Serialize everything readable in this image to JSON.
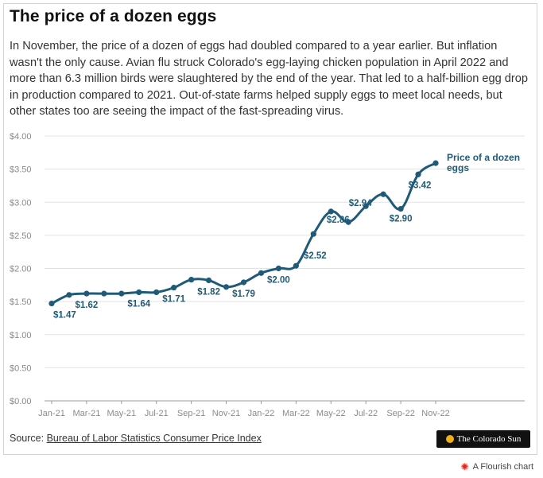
{
  "header": {
    "title": "The price of a dozen eggs",
    "description": "In November, the price of a dozen of eggs had doubled compared to a year earlier. But inflation wasn't the only cause. Avian flu struck Colorado's egg-laying chicken population in April 2022 and more than 6.3 million birds were slaughtered by the end of the year. That led to a half-billion egg drop in production compared to 2021. Out-of-state farms helped supply eggs to meet local needs, but other states too are seeing the impact of the fast-spreading virus."
  },
  "footer": {
    "source_prefix": "Source: ",
    "source_link": "Bureau of Labor Statistics Consumer Price Index",
    "logo_text": "The Colorado Sun",
    "flourish_text": "A Flourish chart"
  },
  "chart_data": {
    "type": "line",
    "title": "",
    "xlabel": "",
    "ylabel": "",
    "ylim": [
      0,
      4
    ],
    "y_ticks": [
      "$0.00",
      "$0.50",
      "$1.00",
      "$1.50",
      "$2.00",
      "$2.50",
      "$3.00",
      "$3.50",
      "$4.00"
    ],
    "x_ticks": [
      "Jan-21",
      "Mar-21",
      "May-21",
      "Jul-21",
      "Sep-21",
      "Nov-21",
      "Jan-22",
      "Mar-22",
      "May-22",
      "Jul-22",
      "Sep-22",
      "Nov-22"
    ],
    "grid": true,
    "categories": [
      "Jan-21",
      "Feb-21",
      "Mar-21",
      "Apr-21",
      "May-21",
      "Jun-21",
      "Jul-21",
      "Aug-21",
      "Sep-21",
      "Oct-21",
      "Nov-21",
      "Dec-21",
      "Jan-22",
      "Feb-22",
      "Mar-22",
      "Apr-22",
      "May-22",
      "Jun-22",
      "Jul-22",
      "Aug-22",
      "Sep-22",
      "Oct-22",
      "Nov-22"
    ],
    "series": [
      {
        "name": "Price of a dozen eggs",
        "color": "#1f5a78",
        "values": [
          1.47,
          1.6,
          1.62,
          1.62,
          1.62,
          1.64,
          1.64,
          1.71,
          1.83,
          1.82,
          1.72,
          1.79,
          1.93,
          2.0,
          2.04,
          2.52,
          2.86,
          2.7,
          2.94,
          3.12,
          2.9,
          3.42,
          3.59
        ]
      }
    ],
    "data_labels": [
      {
        "index": 0,
        "text": "$1.47"
      },
      {
        "index": 2,
        "text": "$1.62"
      },
      {
        "index": 5,
        "text": "$1.64"
      },
      {
        "index": 7,
        "text": "$1.71"
      },
      {
        "index": 9,
        "text": "$1.82"
      },
      {
        "index": 11,
        "text": "$1.79"
      },
      {
        "index": 13,
        "text": "$2.00"
      },
      {
        "index": 15,
        "text": "$2.52"
      },
      {
        "index": 16,
        "text": "$2.86"
      },
      {
        "index": 18,
        "text": "$2.94"
      },
      {
        "index": 20,
        "text": "$2.90"
      },
      {
        "index": 21,
        "text": "$3.42"
      }
    ],
    "series_label_lines": [
      "Price of a dozen",
      "eggs"
    ]
  }
}
